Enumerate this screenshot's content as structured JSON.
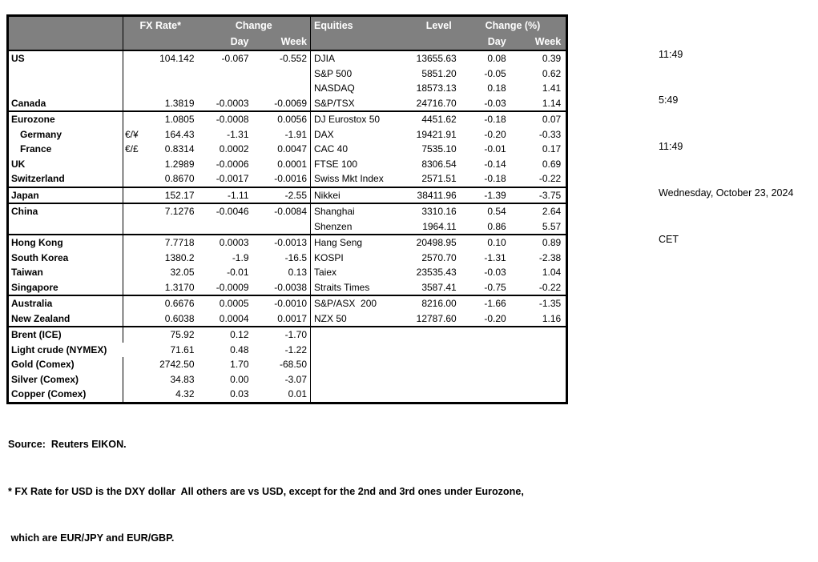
{
  "clock": {
    "lines": [
      "11:49",
      "5:49",
      "11:49",
      "Wednesday, October 23, 2024",
      "CET"
    ]
  },
  "fx_header": {
    "rate": "FX Rate*",
    "change": "Change",
    "day": "Day",
    "week": "Week"
  },
  "eq_header": {
    "title": "Equities",
    "level": "Level",
    "change": "Change (%)",
    "day": "Day",
    "week": "Week"
  },
  "rows": [
    {
      "fx_label": "US",
      "fx_pair": "",
      "fx_rate": "104.142",
      "fx_day": "-0.067",
      "fx_week": "-0.552",
      "eq_label": "DJIA",
      "eq_level": "13655.63",
      "eq_day": "0.08",
      "eq_week": "0.39"
    },
    {
      "fx_label": "",
      "fx_pair": "",
      "fx_rate": "",
      "fx_day": "",
      "fx_week": "",
      "eq_label": "S&P 500",
      "eq_level": "5851.20",
      "eq_day": "-0.05",
      "eq_week": "0.62"
    },
    {
      "fx_label": "",
      "fx_pair": "",
      "fx_rate": "",
      "fx_day": "",
      "fx_week": "",
      "eq_label": "NASDAQ",
      "eq_level": "18573.13",
      "eq_day": "0.18",
      "eq_week": "1.41"
    },
    {
      "fx_label": "Canada",
      "fx_pair": "",
      "fx_rate": "1.3819",
      "fx_day": "-0.0003",
      "fx_week": "-0.0069",
      "eq_label": "S&P/TSX",
      "eq_level": "24716.70",
      "eq_day": "-0.03",
      "eq_week": "1.14"
    },
    {
      "fx_label": "Eurozone",
      "fx_pair": "",
      "fx_rate": "1.0805",
      "fx_day": "-0.0008",
      "fx_week": "0.0056",
      "eq_label": "DJ Eurostox 50",
      "eq_level": "4451.62",
      "eq_day": "-0.18",
      "eq_week": "0.07"
    },
    {
      "fx_label": "Germany",
      "indent": true,
      "fx_pair": "€/¥",
      "fx_rate": "164.43",
      "fx_day": "-1.31",
      "fx_week": "-1.91",
      "eq_label": "DAX",
      "eq_level": "19421.91",
      "eq_day": "-0.20",
      "eq_week": "-0.33"
    },
    {
      "fx_label": "France",
      "indent": true,
      "fx_pair": "€/£",
      "fx_rate": "0.8314",
      "fx_day": "0.0002",
      "fx_week": "0.0047",
      "eq_label": "CAC 40",
      "eq_level": "7535.10",
      "eq_day": "-0.01",
      "eq_week": "0.17"
    },
    {
      "fx_label": "UK",
      "fx_pair": "",
      "fx_rate": "1.2989",
      "fx_day": "-0.0006",
      "fx_week": "0.0001",
      "eq_label": "FTSE 100",
      "eq_level": "8306.54",
      "eq_day": "-0.14",
      "eq_week": "0.69"
    },
    {
      "fx_label": "Switzerland",
      "fx_pair": "",
      "fx_rate": "0.8670",
      "fx_day": "-0.0017",
      "fx_week": "-0.0016",
      "eq_label": "Swiss Mkt Index",
      "eq_level": "2571.51",
      "eq_day": "-0.18",
      "eq_week": "-0.22"
    },
    {
      "fx_label": "Japan",
      "fx_pair": "",
      "fx_rate": "152.17",
      "fx_day": "-1.11",
      "fx_week": "-2.55",
      "eq_label": "Nikkei",
      "eq_level": "38411.96",
      "eq_day": "-1.39",
      "eq_week": "-3.75"
    },
    {
      "fx_label": "China",
      "fx_pair": "",
      "fx_rate": "7.1276",
      "fx_day": "-0.0046",
      "fx_week": "-0.0084",
      "eq_label": "Shanghai",
      "eq_level": "3310.16",
      "eq_day": "0.54",
      "eq_week": "2.64"
    },
    {
      "fx_label": "",
      "fx_pair": "",
      "fx_rate": "",
      "fx_day": "",
      "fx_week": "",
      "eq_label": "Shenzen",
      "eq_level": "1964.11",
      "eq_day": "0.86",
      "eq_week": "5.57"
    },
    {
      "fx_label": "Hong Kong",
      "fx_pair": "",
      "fx_rate": "7.7718",
      "fx_day": "0.0003",
      "fx_week": "-0.0013",
      "eq_label": "Hang Seng",
      "eq_level": "20498.95",
      "eq_day": "0.10",
      "eq_week": "0.89"
    },
    {
      "fx_label": "South Korea",
      "fx_pair": "",
      "fx_rate": "1380.2",
      "fx_day": "-1.9",
      "fx_week": "-16.5",
      "eq_label": "KOSPI",
      "eq_level": "2570.70",
      "eq_day": "-1.31",
      "eq_week": "-2.38"
    },
    {
      "fx_label": "Taiwan",
      "fx_pair": "",
      "fx_rate": "32.05",
      "fx_day": "-0.01",
      "fx_week": "0.13",
      "eq_label": "Taiex",
      "eq_level": "23535.43",
      "eq_day": "-0.03",
      "eq_week": "1.04"
    },
    {
      "fx_label": "Singapore",
      "fx_pair": "",
      "fx_rate": "1.3170",
      "fx_day": "-0.0009",
      "fx_week": "-0.0038",
      "eq_label": "Straits Times",
      "eq_level": "3587.41",
      "eq_day": "-0.75",
      "eq_week": "-0.22"
    },
    {
      "fx_label": "Australia",
      "fx_pair": "",
      "fx_rate": "0.6676",
      "fx_day": "0.0005",
      "fx_week": "-0.0010",
      "eq_label": "S&P/ASX  200",
      "eq_level": "8216.00",
      "eq_day": "-1.66",
      "eq_week": "-1.35"
    },
    {
      "fx_label": "New Zealand",
      "fx_pair": "",
      "fx_rate": "0.6038",
      "fx_day": "0.0004",
      "fx_week": "0.0017",
      "eq_label": "NZX 50",
      "eq_level": "12787.60",
      "eq_day": "-0.20",
      "eq_week": "1.16"
    },
    {
      "fx_label": "Brent (ICE)",
      "fx_pair": "",
      "fx_rate": "75.92",
      "fx_day": "0.12",
      "fx_week": "-1.70",
      "eq_label": "",
      "eq_level": "",
      "eq_day": "",
      "eq_week": ""
    },
    {
      "fx_label": "Light crude (NYMEX)",
      "fx_pair": "",
      "fx_rate": "71.61",
      "fx_day": "0.48",
      "fx_week": "-1.22",
      "eq_label": "",
      "eq_level": "",
      "eq_day": "",
      "eq_week": ""
    },
    {
      "fx_label": "Gold (Comex)",
      "fx_pair": "",
      "fx_rate": "2742.50",
      "fx_day": "1.70",
      "fx_week": "-68.50",
      "eq_label": "",
      "eq_level": "",
      "eq_day": "",
      "eq_week": ""
    },
    {
      "fx_label": "Silver (Comex)",
      "fx_pair": "",
      "fx_rate": "34.83",
      "fx_day": "0.00",
      "fx_week": "-3.07",
      "eq_label": "",
      "eq_level": "",
      "eq_day": "",
      "eq_week": ""
    },
    {
      "fx_label": "Copper (Comex)",
      "fx_pair": "",
      "fx_rate": "4.32",
      "fx_day": "0.03",
      "fx_week": "0.01",
      "eq_label": "",
      "eq_level": "",
      "eq_day": "",
      "eq_week": ""
    }
  ],
  "footer": {
    "source": "Source:  Reuters EIKON.",
    "note1": "* FX Rate for USD is the DXY dollar  All others are vs USD, except for the 2nd and 3rd ones under Eurozone,",
    "note2": " which are EUR/JPY and EUR/GBP."
  },
  "colors": {
    "header_bg": "#808080",
    "header_text": "#ffffff",
    "border": "#000000",
    "text": "#000000"
  }
}
